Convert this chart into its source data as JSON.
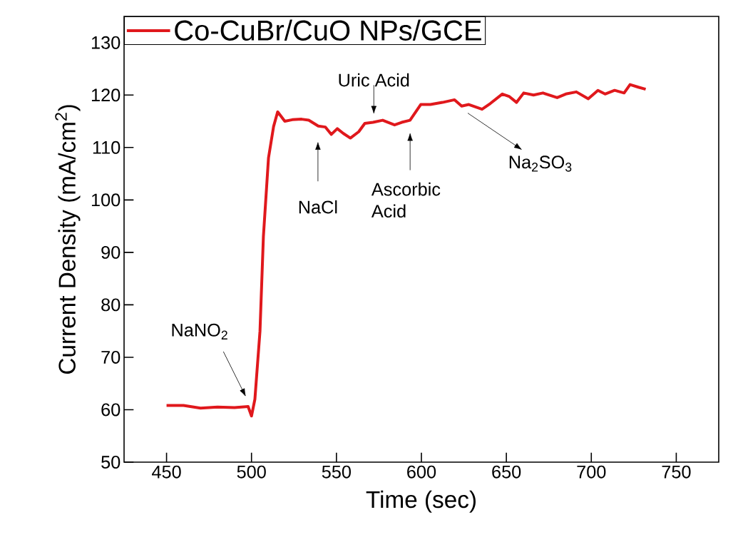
{
  "chart_data": {
    "type": "line",
    "xlabel": "Time (sec)",
    "ylabel": "Current Density (mA/cm$^{2}$)",
    "xlim": [
      425,
      775
    ],
    "ylim": [
      50,
      135
    ],
    "xticks": [
      450,
      500,
      550,
      600,
      650,
      700,
      750
    ],
    "yticks": [
      50,
      60,
      70,
      80,
      90,
      100,
      110,
      120,
      130
    ],
    "grid": false,
    "legend": "top left",
    "marker": "none",
    "line_style": "solid",
    "series": [
      {
        "name": "Co-CuBr/CuO NPs/GCE",
        "color": "#e0181c",
        "x": [
          450,
          460,
          470,
          480,
          490,
          498,
          500,
          502,
          505,
          507,
          510,
          513,
          515.4,
          519.6,
          524,
          529.5,
          533.7,
          539.3,
          543.5,
          547,
          550.5,
          554,
          558.2,
          563.1,
          566.7,
          571.5,
          577.2,
          584.2,
          588.4,
          593.3,
          599.6,
          605.3,
          612.4,
          619.5,
          623.7,
          627.9,
          635.7,
          640.6,
          647.6,
          651.8,
          656,
          660.2,
          666,
          671.5,
          679.9,
          685,
          691.2,
          698.2,
          703.9,
          708.1,
          713.7,
          719.3,
          722.8,
          727.7,
          732
        ],
        "values": [
          60.8,
          60.8,
          60.3,
          60.5,
          60.4,
          60.6,
          58.8,
          62,
          75,
          93,
          108,
          114,
          116.8,
          115.0,
          115.3,
          115.4,
          115.2,
          114.1,
          113.9,
          112.5,
          113.6,
          112.7,
          111.8,
          113.0,
          114.6,
          114.8,
          115.2,
          114.3,
          114.8,
          115.2,
          118.2,
          118.2,
          118.6,
          119.1,
          117.9,
          118.2,
          117.3,
          118.4,
          120.2,
          119.7,
          118.6,
          120.4,
          120.0,
          120.4,
          119.5,
          120.2,
          120.6,
          119.3,
          120.9,
          120.2,
          120.9,
          120.4,
          122.0,
          121.5,
          121.1
        ]
      }
    ],
    "annotations": [
      "NaNO$_{2}$",
      "NaCl",
      "Uric Acid",
      "Ascorbic Acid",
      "Na$_{2}$SO$_{3}$"
    ]
  }
}
